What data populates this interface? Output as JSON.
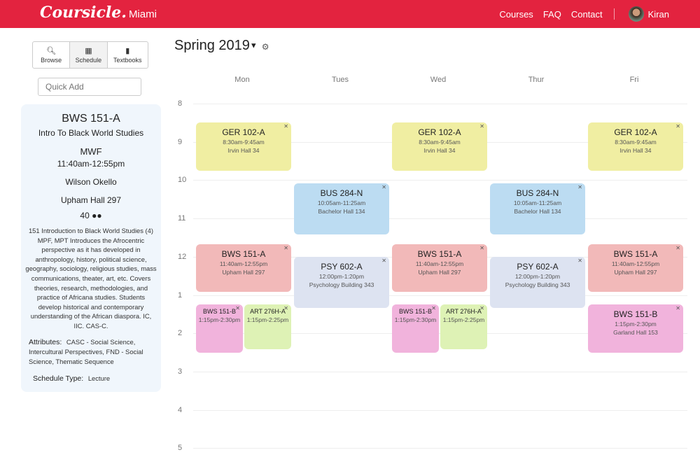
{
  "header": {
    "brand": "Coursicle",
    "school": "Miami",
    "nav": [
      "Courses",
      "FAQ",
      "Contact"
    ],
    "user": "Kiran",
    "accent": "#e3233f"
  },
  "sidebar": {
    "tabs": [
      {
        "label": "Browse",
        "icon": "search-icon"
      },
      {
        "label": "Schedule",
        "icon": "calendar-icon"
      },
      {
        "label": "Textbooks",
        "icon": "book-icon"
      }
    ],
    "quick_add_placeholder": "Quick Add",
    "course": {
      "code": "BWS 151-A",
      "title": "Intro To Black World Studies",
      "days": "MWF",
      "time": "11:40am-12:55pm",
      "instructor": "Wilson Okello",
      "room": "Upham Hall 297",
      "capacity": "40",
      "description": "151 Introduction to Black World Studies (4) MPF, MPT Introduces the Afrocentric perspective as it has developed in anthropology, history, political science, geography, sociology, religious studies, mass communications, theater, art, etc. Covers theories, research, methodologies, and practice of Africana studies. Students develop historical and contemporary understanding of the African diaspora. IC, IIC. CAS-C.",
      "attributes_label": "Attributes:",
      "attributes": "CASC - Social Science, Intercultural Perspectives, FND - Social Science, Thematic Sequence",
      "schedule_type_label": "Schedule Type:",
      "schedule_type": "Lecture"
    }
  },
  "calendar": {
    "term": "Spring 2019",
    "days": [
      "Mon",
      "Tues",
      "Wed",
      "Thur",
      "Fri"
    ],
    "hours": [
      "8",
      "9",
      "10",
      "11",
      "12",
      "1",
      "2",
      "3",
      "4",
      "5"
    ],
    "events": [
      {
        "code": "GER 102-A",
        "time": "8:30am-9:45am",
        "room": "Irvin Hall 34",
        "days": [
          0,
          2,
          4
        ],
        "start": 8.5,
        "end": 9.75,
        "color": "#f0eea2"
      },
      {
        "code": "BUS 284-N",
        "time": "10:05am-11:25am",
        "room": "Bachelor Hall 134",
        "days": [
          1,
          3
        ],
        "start": 10.083,
        "end": 11.417,
        "color": "#bcdcf2"
      },
      {
        "code": "BWS 151-A",
        "time": "11:40am-12:55pm",
        "room": "Upham Hall 297",
        "days": [
          0,
          2,
          4
        ],
        "start": 11.667,
        "end": 12.917,
        "color": "#f2b9b9"
      },
      {
        "code": "PSY 602-A",
        "time": "12:00pm-1:20pm",
        "room": "Psychology Building 343",
        "days": [
          1,
          3
        ],
        "start": 12,
        "end": 13.333,
        "color": "#dde3f1"
      },
      {
        "code": "BWS 151-B",
        "time": "1:15pm-2:30pm",
        "room": "",
        "days": [
          0,
          2
        ],
        "start": 13.25,
        "end": 14.5,
        "color": "#f1b3dc",
        "half": 0
      },
      {
        "code": "ART 276H-A",
        "time": "1:15pm-2:25pm",
        "room": "",
        "days": [
          0,
          2
        ],
        "start": 13.25,
        "end": 14.417,
        "color": "#def2b5",
        "half": 1
      },
      {
        "code": "BWS 151-B",
        "time": "1:15pm-2:30pm",
        "room": "Garland Hall 153",
        "days": [
          4
        ],
        "start": 13.25,
        "end": 14.5,
        "color": "#f1b3dc"
      }
    ]
  }
}
